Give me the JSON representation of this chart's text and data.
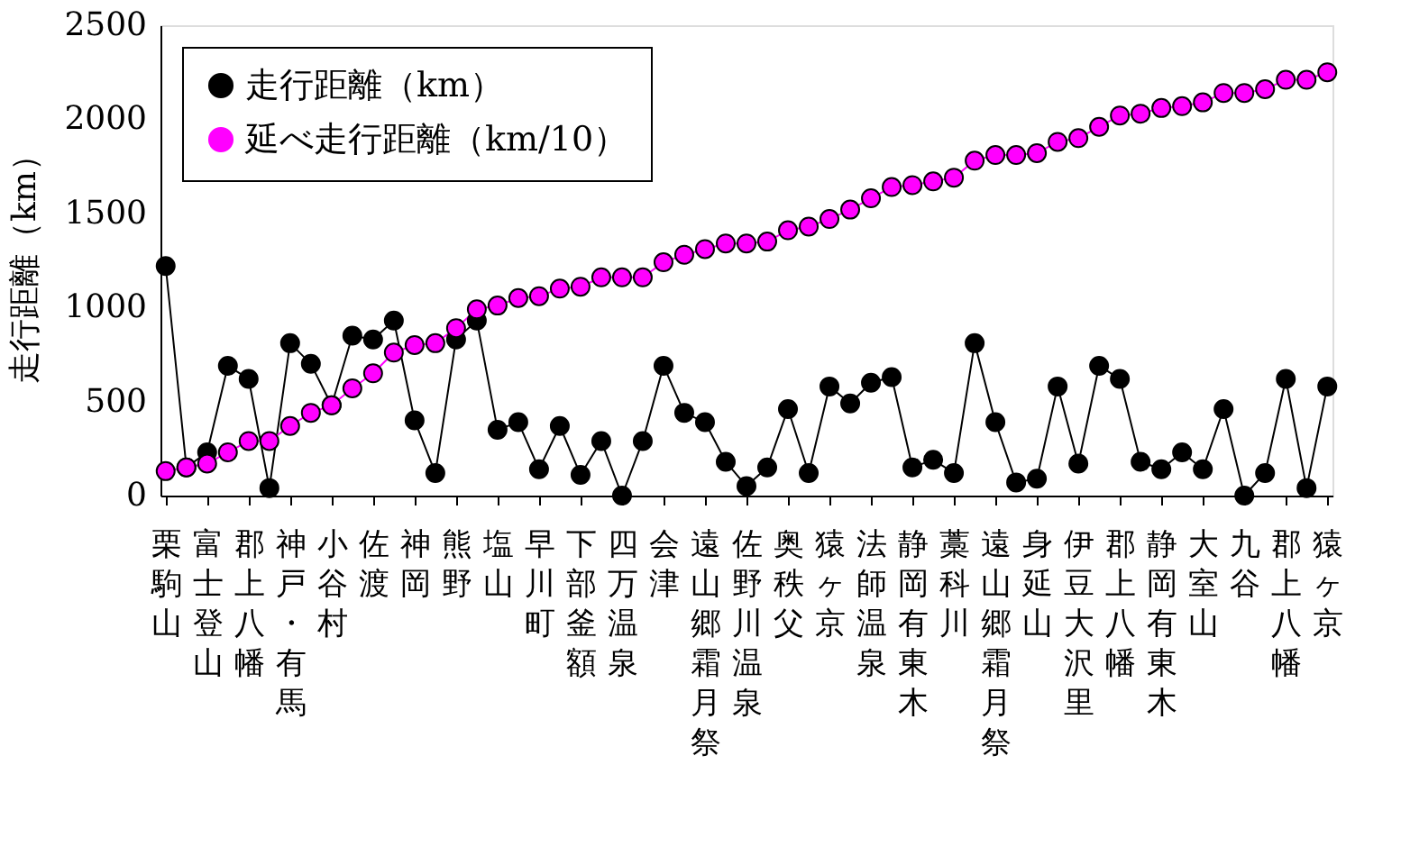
{
  "chart_data": {
    "type": "line",
    "ylabel": "走行距離（km）",
    "categories": [
      "栗駒山",
      null,
      "富士登山",
      null,
      "郡上八幡",
      null,
      "神戸・有馬",
      null,
      "小谷村",
      null,
      "佐渡",
      null,
      "神岡",
      null,
      "熊野",
      null,
      "塩山",
      null,
      "早川町",
      null,
      "下部釜額",
      null,
      "四万温泉",
      null,
      "会津",
      null,
      "遠山郷霜月祭",
      null,
      "佐野川温泉",
      null,
      "奥秩父",
      null,
      "猿ヶ京",
      null,
      "法師温泉",
      null,
      "静岡有東木",
      null,
      "藁科川",
      null,
      "遠山郷霜月祭",
      null,
      "身延山",
      null,
      "伊豆大沢里",
      null,
      "郡上八幡",
      null,
      "静岡有東木",
      null,
      "大室山",
      null,
      "九谷",
      null,
      "郡上八幡",
      null,
      "猿ヶ京"
    ],
    "series": [
      {
        "name": "走行距離（km）",
        "color": "#000000",
        "values": [
          1220,
          150,
          230,
          690,
          620,
          40,
          810,
          700,
          480,
          850,
          830,
          930,
          400,
          120,
          830,
          930,
          350,
          390,
          140,
          370,
          110,
          290,
          0,
          290,
          690,
          440,
          390,
          180,
          50,
          150,
          460,
          120,
          580,
          490,
          600,
          630,
          150,
          190,
          120,
          810,
          390,
          70,
          90,
          580,
          170,
          690,
          620,
          180,
          140,
          230,
          140,
          460,
          0,
          120,
          620,
          40,
          580
        ]
      },
      {
        "name": "延べ走行距離（km/10）",
        "color": "#ff00ff",
        "values": [
          130,
          150,
          170,
          230,
          290,
          290,
          370,
          440,
          480,
          570,
          650,
          760,
          800,
          810,
          890,
          990,
          1010,
          1050,
          1060,
          1100,
          1110,
          1160,
          1160,
          1160,
          1240,
          1280,
          1310,
          1340,
          1340,
          1350,
          1410,
          1430,
          1470,
          1520,
          1580,
          1640,
          1650,
          1670,
          1690,
          1780,
          1810,
          1810,
          1820,
          1880,
          1900,
          1960,
          2020,
          2030,
          2060,
          2070,
          2090,
          2140,
          2140,
          2160,
          2210,
          2210,
          2250
        ]
      }
    ],
    "ylim": [
      0,
      2500
    ],
    "yticks": [
      0,
      500,
      1000,
      1500,
      2000,
      2500
    ],
    "grid": false,
    "legend": "top left",
    "marker": "circle",
    "line_style": "solid"
  }
}
